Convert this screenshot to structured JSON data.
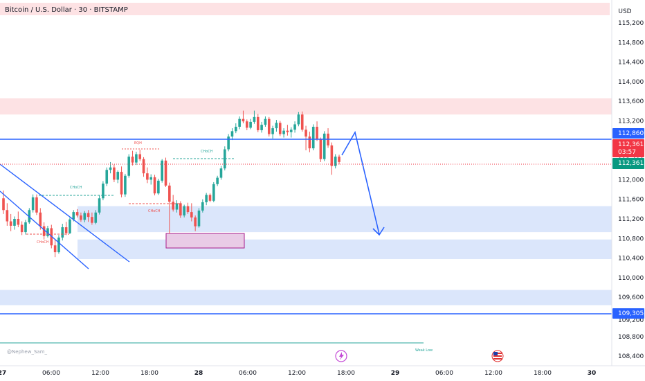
{
  "header": {
    "symbol_title": "Bitcoin / U.S. Dollar · 30 · BITSTAMP",
    "currency": "USD"
  },
  "watermark": "@Nephew_Sam_",
  "colors": {
    "up": "#26a69a",
    "down": "#ef5350",
    "level_line": "#2962ff",
    "price_badge": "#f23645",
    "last_badge": "#089981",
    "supply_zone": "#fde2e4",
    "demand_zone": "#dbe6fb",
    "ob_zone": "#e9cbe6"
  },
  "y_axis": {
    "ticks": [
      "115,200",
      "114,800",
      "114,400",
      "114,000",
      "113,600",
      "113,200",
      "112,400",
      "112,000",
      "111,600",
      "111,200",
      "110,800",
      "110,400",
      "110,000",
      "109,600",
      "108,800",
      "108,400"
    ],
    "tick_values": [
      115200,
      114800,
      114400,
      114000,
      113600,
      113200,
      112400,
      112000,
      111600,
      111200,
      110800,
      110400,
      110000,
      109600,
      108800,
      108400
    ],
    "partial_tick": "109,200",
    "labels": {
      "level_high": "112,860",
      "price": "112,361",
      "countdown": "03:57",
      "last_price": "112,361",
      "level_low": "109,305"
    }
  },
  "x_axis": {
    "ticks": [
      "27",
      "06:00",
      "12:00",
      "18:00",
      "28",
      "06:00",
      "12:00",
      "18:00",
      "29",
      "06:00",
      "12:00",
      "18:00",
      "30"
    ],
    "bold_ticks": [
      "27",
      "28",
      "29",
      "30"
    ]
  },
  "annotations": {
    "eqh": "EQH",
    "choch_left": "CHoCH",
    "choch_red_1": "CHoCH",
    "choch_red_2": "CHoCH",
    "choch_top": "CHoCH",
    "weak_low": "Weak Low"
  },
  "chart_data": {
    "type": "candlestick",
    "timeframe": "30",
    "ylim": [
      108200,
      115500
    ],
    "levels": [
      112860,
      109305
    ],
    "current_price": 112361,
    "zones": [
      {
        "kind": "supply",
        "from": 113330,
        "to": 113660
      },
      {
        "kind": "demand",
        "from": 110930,
        "to": 111460
      },
      {
        "kind": "demand",
        "from": 110380,
        "to": 110780
      },
      {
        "kind": "demand",
        "from": 109440,
        "to": 109750
      }
    ],
    "candles_ohlc": [
      [
        111620,
        111780,
        111300,
        111380
      ],
      [
        111380,
        111520,
        111060,
        111150
      ],
      [
        111150,
        111300,
        110950,
        111060
      ],
      [
        111060,
        111250,
        110980,
        111200
      ],
      [
        111200,
        111350,
        111030,
        111080
      ],
      [
        111080,
        111150,
        110870,
        110930
      ],
      [
        110930,
        111180,
        110880,
        111130
      ],
      [
        111130,
        111420,
        111100,
        111380
      ],
      [
        111380,
        111700,
        111330,
        111640
      ],
      [
        111640,
        111700,
        111280,
        111330
      ],
      [
        111330,
        111420,
        110980,
        111050
      ],
      [
        111050,
        111130,
        110780,
        110850
      ],
      [
        110850,
        111060,
        110820,
        111010
      ],
      [
        111010,
        111080,
        110600,
        110660
      ],
      [
        110660,
        110780,
        110420,
        110520
      ],
      [
        110520,
        110870,
        110490,
        110820
      ],
      [
        110820,
        111100,
        110760,
        111030
      ],
      [
        111030,
        111140,
        110870,
        110910
      ],
      [
        110910,
        111230,
        110890,
        111190
      ],
      [
        111190,
        111380,
        111150,
        111340
      ],
      [
        111340,
        111400,
        111230,
        111270
      ],
      [
        111270,
        111330,
        111140,
        111180
      ],
      [
        111180,
        111360,
        111130,
        111320
      ],
      [
        111320,
        111380,
        111140,
        111240
      ],
      [
        111240,
        111330,
        111080,
        111120
      ],
      [
        111120,
        111380,
        111090,
        111330
      ],
      [
        111330,
        111690,
        111290,
        111620
      ],
      [
        111620,
        111970,
        111580,
        111920
      ],
      [
        111920,
        112250,
        111870,
        112200
      ],
      [
        112200,
        112360,
        112130,
        112250
      ],
      [
        112250,
        112310,
        111950,
        112000
      ],
      [
        112000,
        112190,
        111930,
        112160
      ],
      [
        112160,
        112270,
        111640,
        111700
      ],
      [
        111700,
        112120,
        111650,
        112080
      ],
      [
        112080,
        112520,
        112040,
        112470
      ],
      [
        112470,
        112590,
        112290,
        112350
      ],
      [
        112350,
        112570,
        112300,
        112520
      ],
      [
        112520,
        112610,
        112380,
        112420
      ],
      [
        112420,
        112460,
        112060,
        112130
      ],
      [
        112130,
        112250,
        111930,
        112000
      ],
      [
        112000,
        112110,
        111900,
        112050
      ],
      [
        112050,
        112100,
        111680,
        111720
      ],
      [
        111720,
        112020,
        111690,
        111980
      ],
      [
        111980,
        112420,
        111940,
        112390
      ],
      [
        112390,
        112450,
        111850,
        111880
      ],
      [
        111880,
        111940,
        110900,
        111550
      ],
      [
        111550,
        111690,
        111350,
        111390
      ],
      [
        111390,
        111580,
        111330,
        111520
      ],
      [
        111520,
        111560,
        111220,
        111270
      ],
      [
        111270,
        111490,
        111230,
        111460
      ],
      [
        111460,
        111530,
        111300,
        111340
      ],
      [
        111340,
        111520,
        111150,
        111230
      ],
      [
        111230,
        111270,
        110950,
        111050
      ],
      [
        111050,
        111420,
        111020,
        111370
      ],
      [
        111370,
        111600,
        111330,
        111540
      ],
      [
        111540,
        111730,
        111480,
        111690
      ],
      [
        111690,
        111720,
        111540,
        111570
      ],
      [
        111570,
        111950,
        111540,
        111910
      ],
      [
        111910,
        112080,
        111870,
        112040
      ],
      [
        112040,
        112280,
        112000,
        112230
      ],
      [
        112230,
        112680,
        112190,
        112620
      ],
      [
        112620,
        112930,
        112580,
        112880
      ],
      [
        112880,
        113050,
        112810,
        112990
      ],
      [
        112990,
        113150,
        112950,
        113080
      ],
      [
        113080,
        113290,
        113030,
        113240
      ],
      [
        113240,
        113410,
        113150,
        113190
      ],
      [
        113190,
        113230,
        113010,
        113060
      ],
      [
        113060,
        113240,
        113030,
        113180
      ],
      [
        113180,
        113410,
        113140,
        113280
      ],
      [
        113280,
        113340,
        112970,
        113010
      ],
      [
        113010,
        113180,
        112960,
        113120
      ],
      [
        113120,
        113290,
        113080,
        113240
      ],
      [
        113240,
        113280,
        112880,
        112930
      ],
      [
        112930,
        113100,
        112840,
        113050
      ],
      [
        113050,
        113220,
        112980,
        113160
      ],
      [
        113160,
        113200,
        112890,
        112930
      ],
      [
        112930,
        113050,
        112860,
        113000
      ],
      [
        113000,
        113120,
        112900,
        112970
      ],
      [
        112970,
        113070,
        112860,
        113020
      ],
      [
        113020,
        113190,
        112960,
        113130
      ],
      [
        113130,
        113380,
        113090,
        113330
      ],
      [
        113330,
        113390,
        112980,
        113020
      ],
      [
        113020,
        113100,
        112600,
        112880
      ],
      [
        112880,
        112980,
        112560,
        112640
      ],
      [
        112640,
        113130,
        112600,
        113080
      ],
      [
        113080,
        113190,
        112790,
        112820
      ],
      [
        112820,
        112860,
        112360,
        112420
      ],
      [
        112420,
        112990,
        112380,
        112940
      ],
      [
        112940,
        113050,
        112650,
        112700
      ],
      [
        112700,
        112760,
        112100,
        112280
      ],
      [
        112280,
        112520,
        112230,
        112470
      ],
      [
        112470,
        112510,
        112310,
        112361
      ]
    ]
  }
}
